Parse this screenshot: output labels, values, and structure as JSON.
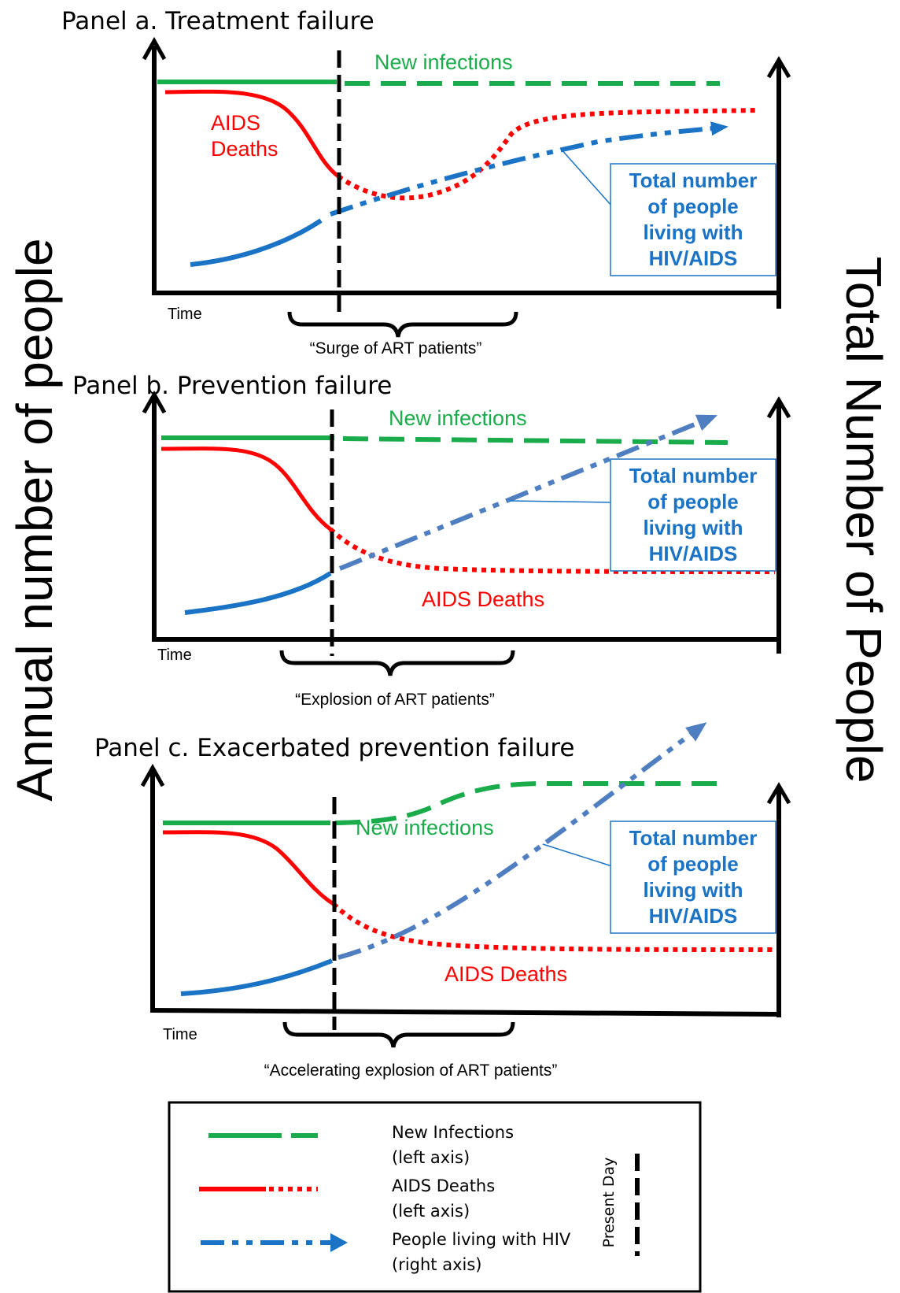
{
  "axis_titles": {
    "left": "Annual number of people",
    "right": "Total Number of People"
  },
  "panels": [
    {
      "title": "Panel  a. Treatment failure",
      "new_infections_label": "New infections",
      "deaths_label_line1": "AIDS",
      "deaths_label_line2": "Deaths",
      "plwh_box": [
        "Total number",
        "of people",
        "living with",
        "HIV/AIDS"
      ],
      "time_label": "Time",
      "brace_label": "“Surge of ART patients”"
    },
    {
      "title": "Panel  b. Prevention failure",
      "new_infections_label": "New infections",
      "deaths_label": "AIDS Deaths",
      "plwh_box": [
        "Total number",
        "of people",
        "living with",
        "HIV/AIDS"
      ],
      "time_label": "Time",
      "brace_label": "“Explosion of ART patients”"
    },
    {
      "title": "Panel  c. Exacerbated prevention failure",
      "new_infections_label": "New infections",
      "deaths_label": "AIDS Deaths",
      "plwh_box": [
        "Total number",
        "of people",
        "living with",
        "HIV/AIDS"
      ],
      "time_label": "Time",
      "brace_label": "“Accelerating explosion of ART patients”"
    }
  ],
  "legend": {
    "new_infections_line1": "New Infections",
    "new_infections_line2": "(left axis)",
    "deaths_line1": "AIDS Deaths",
    "deaths_line2": "(left axis)",
    "plwh_line1": "People living with HIV",
    "plwh_line2": "(right axis)",
    "present_day": "Present  Day"
  },
  "colors": {
    "green": "#1aab4b",
    "red": "#ff0000",
    "blue": "#1a73c4",
    "blue_light": "#4f7fc0",
    "black": "#000000"
  }
}
